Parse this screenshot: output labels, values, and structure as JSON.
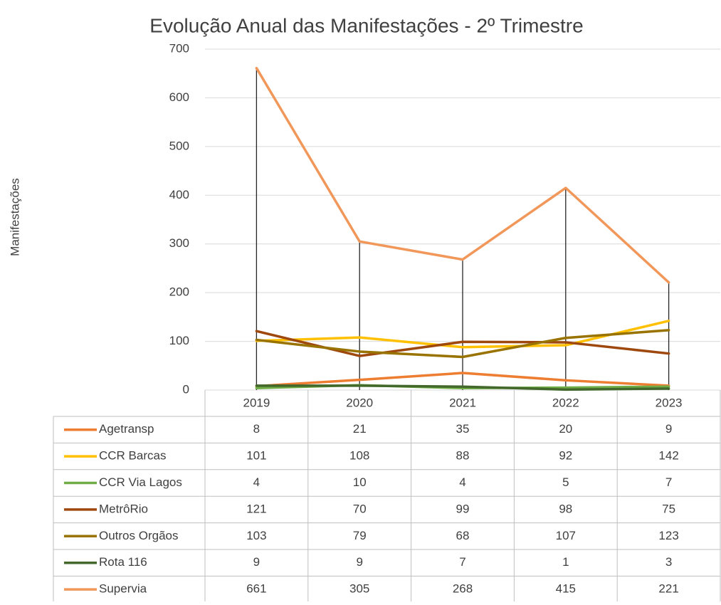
{
  "chart_data": {
    "type": "line",
    "title": "Evolução Anual das Manifestações  - 2º Trimestre",
    "y_label": "Manifestações",
    "categories": [
      "2019",
      "2020",
      "2021",
      "2022",
      "2023"
    ],
    "ylim": [
      0,
      700
    ],
    "yticks": [
      0,
      100,
      200,
      300,
      400,
      500,
      600,
      700
    ],
    "grid": true,
    "drop_lines": true,
    "series": [
      {
        "name": "Agetransp",
        "color": "#ed7d31",
        "values": [
          8,
          21,
          35,
          20,
          9
        ]
      },
      {
        "name": "CCR Barcas",
        "color": "#ffc000",
        "values": [
          101,
          108,
          88,
          92,
          142
        ]
      },
      {
        "name": "CCR Via Lagos",
        "color": "#70ad47",
        "values": [
          4,
          10,
          4,
          5,
          7
        ]
      },
      {
        "name": "MetrôRio",
        "color": "#9e480e",
        "values": [
          121,
          70,
          99,
          98,
          75
        ]
      },
      {
        "name": "Outros Orgãos",
        "color": "#997300",
        "values": [
          103,
          79,
          68,
          107,
          123
        ]
      },
      {
        "name": "Rota 116",
        "color": "#43682b",
        "values": [
          9,
          9,
          7,
          1,
          3
        ]
      },
      {
        "name": "Supervia",
        "color": "#f1975a",
        "values": [
          661,
          305,
          268,
          415,
          221
        ]
      }
    ]
  }
}
